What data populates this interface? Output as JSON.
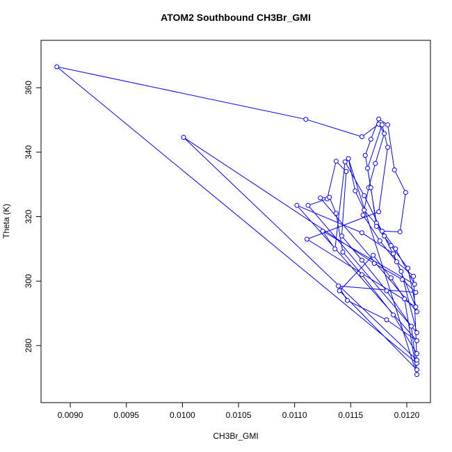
{
  "chart_data": {
    "type": "line",
    "title": "ATOM2 Southbound CH3Br_GMI",
    "x_label": "CH3Br_GMI",
    "y_label": "Theta (K)",
    "x": [
      0.01209,
      0.00888,
      0.0111,
      0.0116,
      0.01175,
      0.0118,
      0.01172,
      0.01166,
      0.01161,
      0.01176,
      0.01191,
      0.01206,
      0.01209,
      0.01001,
      0.01171,
      0.01196,
      0.01208,
      0.01139,
      0.01147,
      0.01182,
      0.01209,
      0.01102,
      0.0116,
      0.01188,
      0.01208,
      0.01111,
      0.01175,
      0.01183,
      0.01178,
      0.01165,
      0.01173,
      0.0119,
      0.01207,
      0.01125,
      0.01136,
      0.01145,
      0.01162,
      0.0118,
      0.01195,
      0.01209,
      0.01112,
      0.01129,
      0.01137,
      0.01146,
      0.01142,
      0.0116,
      0.01182,
      0.01204,
      0.01209,
      0.0114,
      0.0117,
      0.01186,
      0.01198,
      0.01209,
      0.01148,
      0.01154,
      0.01162,
      0.01178,
      0.01194,
      0.01199,
      0.01189,
      0.01183,
      0.01175,
      0.01168,
      0.01163,
      0.01168,
      0.01173,
      0.01186,
      0.01201,
      0.01209,
      0.01123,
      0.01131,
      0.01137,
      0.01143,
      0.0116,
      0.01188,
      0.01209
    ],
    "series": [
      {
        "color": "#0000ff",
        "values": [
          274.5,
          366.5,
          350.2,
          344.8,
          348.7,
          345.8,
          336.5,
          329,
          320.5,
          312.5,
          306,
          301.5,
          275.5,
          344.6,
          305.5,
          300.5,
          296.5,
          298.5,
          294,
          288,
          281.5,
          323.5,
          315,
          308.5,
          292,
          313,
          321.5,
          341.5,
          348.5,
          335,
          318,
          310,
          299,
          315.5,
          310,
          337,
          326.5,
          314,
          303,
          284,
          323.5,
          325.5,
          337.2,
          334,
          314,
          306.5,
          297,
          286,
          272.5,
          297,
          308,
          301,
          294.5,
          271,
          338,
          328,
          322,
          315.5,
          315.3,
          327.5,
          334.5,
          348.5,
          350.3,
          344,
          339,
          329,
          317,
          311,
          304,
          290.5,
          325.8,
          326,
          321,
          309,
          302,
          289.5,
          277.5
        ]
      }
    ],
    "xlim": [
      0.008739,
      0.012211
    ],
    "ylim": [
      262.3,
      374.7
    ],
    "xticks": [
      {
        "value": 0.009,
        "label": "0.0090"
      },
      0.0095,
      {
        "value": 0.01,
        "label": "0.0100"
      },
      0.0105,
      {
        "value": 0.011,
        "label": "0.0110"
      },
      0.0115,
      {
        "value": 0.012,
        "label": "0.0120"
      }
    ],
    "yticks": [
      280,
      300,
      320,
      340,
      360
    ]
  }
}
